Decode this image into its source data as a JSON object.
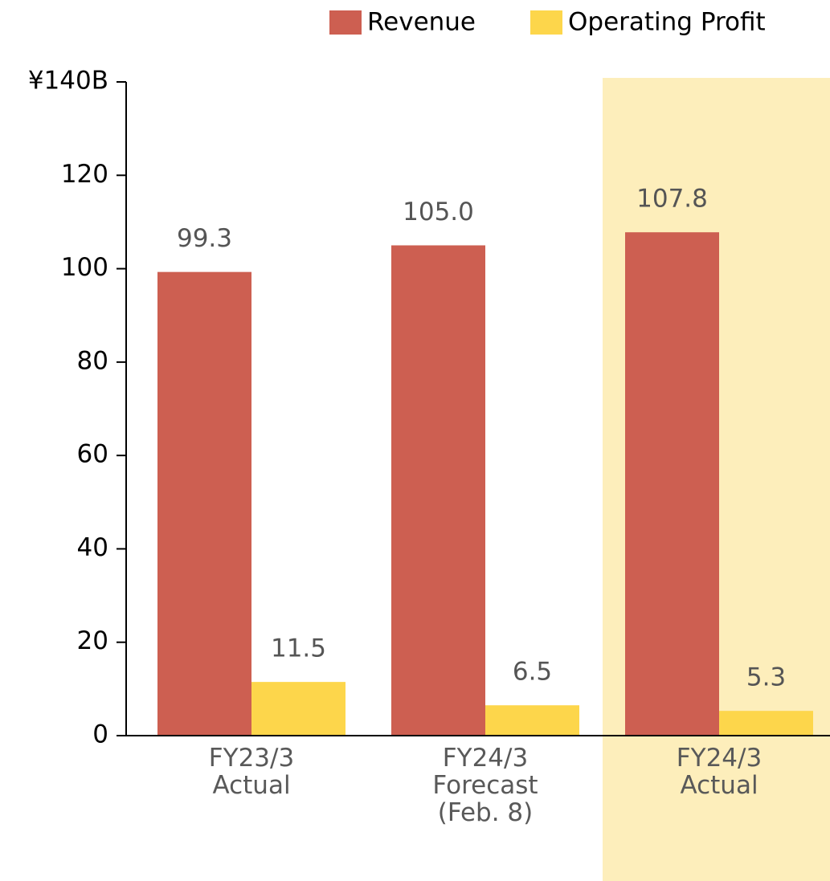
{
  "chart_data": {
    "type": "bar",
    "categories": [
      [
        "FY23/3",
        "Actual"
      ],
      [
        "FY24/3",
        "Forecast",
        "(Feb. 8)"
      ],
      [
        "FY24/3",
        "Actual"
      ]
    ],
    "series": [
      {
        "name": "Revenue",
        "color": "#cd5f51",
        "values": [
          99.3,
          105.0,
          107.8
        ],
        "value_labels": [
          "99.3",
          "105.0",
          "107.8"
        ]
      },
      {
        "name": "Operating Profit",
        "color": "#fdd64b",
        "values": [
          11.5,
          6.5,
          5.3
        ],
        "value_labels": [
          "11.5",
          "6.5",
          "5.3"
        ]
      }
    ],
    "ylim": [
      0,
      140
    ],
    "yticks": [
      0,
      20,
      40,
      60,
      80,
      100,
      120,
      {
        "value": 140,
        "label": "¥140B"
      }
    ],
    "legend": "top-right"
  }
}
